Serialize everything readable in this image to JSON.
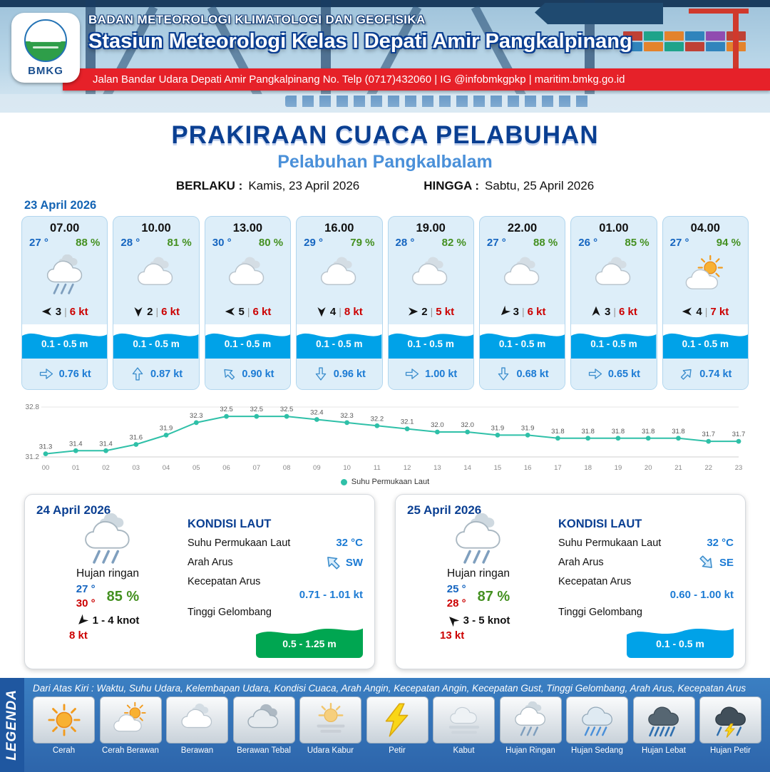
{
  "header": {
    "logo_text": "BMKG",
    "agency": "BADAN METEOROLOGI KLIMATOLOGI DAN GEOFISIKA",
    "station": "Stasiun Meteorologi Kelas I Depati Amir Pangkalpinang",
    "address": "Jalan Bandar Udara Depati Amir Pangkalpinang No. Telp (0717)432060 | IG @infobmkgpkp | maritim.bmkg.go.id"
  },
  "title": {
    "main": "PRAKIRAAN CUACA PELABUHAN",
    "subtitle": "Pelabuhan Pangkalbalam",
    "berlaku_label": "BERLAKU :",
    "berlaku_value": "Kamis, 23 April 2026",
    "hingga_label": "HINGGA :",
    "hingga_value": "Sabtu, 25 April 2026"
  },
  "forecast": {
    "date": "23 April 2026",
    "cards": [
      {
        "time": "07.00",
        "temp": "27 °",
        "humidity": "88 %",
        "icon": "rain-light",
        "wind_deg": 180,
        "wind_val": "3",
        "wind_speed": "6 kt",
        "wave": "0.1 - 0.5 m",
        "current_deg": 0,
        "current": "0.76 kt"
      },
      {
        "time": "10.00",
        "temp": "28 °",
        "humidity": "81 %",
        "icon": "cloud",
        "wind_deg": 90,
        "wind_val": "2",
        "wind_speed": "6 kt",
        "wave": "0.1 - 0.5 m",
        "current_deg": 270,
        "current": "0.87 kt"
      },
      {
        "time": "13.00",
        "temp": "30 °",
        "humidity": "80 %",
        "icon": "cloud",
        "wind_deg": 180,
        "wind_val": "5",
        "wind_speed": "6 kt",
        "wave": "0.1 - 0.5 m",
        "current_deg": 225,
        "current": "0.90 kt"
      },
      {
        "time": "16.00",
        "temp": "29 °",
        "humidity": "79 %",
        "icon": "cloud",
        "wind_deg": 90,
        "wind_val": "4",
        "wind_speed": "8 kt",
        "wave": "0.1 - 0.5 m",
        "current_deg": 90,
        "current": "0.96 kt"
      },
      {
        "time": "19.00",
        "temp": "28 °",
        "humidity": "82 %",
        "icon": "cloud",
        "wind_deg": 0,
        "wind_val": "2",
        "wind_speed": "5 kt",
        "wave": "0.1 - 0.5 m",
        "current_deg": 0,
        "current": "1.00 kt"
      },
      {
        "time": "22.00",
        "temp": "27 °",
        "humidity": "88 %",
        "icon": "cloud",
        "wind_deg": 135,
        "wind_val": "3",
        "wind_speed": "6 kt",
        "wave": "0.1 - 0.5 m",
        "current_deg": 90,
        "current": "0.68 kt"
      },
      {
        "time": "01.00",
        "temp": "26 °",
        "humidity": "85 %",
        "icon": "cloud",
        "wind_deg": 270,
        "wind_val": "3",
        "wind_speed": "6 kt",
        "wave": "0.1 - 0.5 m",
        "current_deg": 0,
        "current": "0.65 kt"
      },
      {
        "time": "04.00",
        "temp": "27 °",
        "humidity": "94 %",
        "icon": "sun-cloud",
        "wind_deg": 180,
        "wind_val": "4",
        "wind_speed": "7 kt",
        "wave": "0.1 - 0.5 m",
        "current_deg": 315,
        "current": "0.74 kt"
      }
    ]
  },
  "chart_data": {
    "type": "line",
    "series_label": "Suhu Permukaan Laut",
    "x": [
      "00",
      "01",
      "02",
      "03",
      "04",
      "05",
      "06",
      "07",
      "08",
      "09",
      "10",
      "11",
      "12",
      "13",
      "14",
      "15",
      "16",
      "17",
      "18",
      "19",
      "20",
      "21",
      "22",
      "23"
    ],
    "values": [
      31.3,
      31.4,
      31.4,
      31.6,
      31.9,
      32.3,
      32.5,
      32.5,
      32.5,
      32.4,
      32.3,
      32.2,
      32.1,
      32.0,
      32.0,
      31.9,
      31.9,
      31.8,
      31.8,
      31.8,
      31.8,
      31.8,
      31.7,
      31.7
    ],
    "ylim": [
      31.2,
      32.8
    ],
    "y_ticks": [
      "32.8",
      "31.2"
    ],
    "line_color": "#2fc0a8",
    "grid": false,
    "legend_position": "bottom"
  },
  "daily": [
    {
      "date": "24 April 2026",
      "icon": "rain-light",
      "condition": "Hujan ringan",
      "temp_min": "27 °",
      "temp_max": "30 °",
      "humidity": "85 %",
      "wind_deg": 135,
      "wind": "1 - 4 knot",
      "gust": "8 kt",
      "sea": {
        "title": "KONDISI LAUT",
        "sst_label": "Suhu Permukaan Laut",
        "sst": "32 °C",
        "dir_label": "Arah Arus",
        "dir": "SW",
        "current_deg": 225,
        "speed_label": "Kecepatan Arus",
        "speed": "0.71 - 1.01 kt",
        "wave_label": "Tinggi Gelombang",
        "wave": "0.5 - 1.25 m",
        "wave_color": "#00a651"
      }
    },
    {
      "date": "25 April 2026",
      "icon": "rain-light",
      "condition": "Hujan ringan",
      "temp_min": "25 °",
      "temp_max": "28 °",
      "humidity": "87 %",
      "wind_deg": 225,
      "wind": "3 - 5 knot",
      "gust": "13 kt",
      "sea": {
        "title": "KONDISI LAUT",
        "sst_label": "Suhu Permukaan Laut",
        "sst": "32 °C",
        "dir_label": "Arah Arus",
        "dir": "SE",
        "current_deg": 45,
        "speed_label": "Kecepatan Arus",
        "speed": "0.60 - 1.00 kt",
        "wave_label": "Tinggi Gelombang",
        "wave": "0.1 - 0.5 m",
        "wave_color": "#00a2e8"
      }
    }
  ],
  "legend": {
    "title": "LEGENDA",
    "description": "Dari Atas Kiri : Waktu, Suhu Udara, Kelembapan Udara, Kondisi Cuaca, Arah Angin, Kecepatan Angin, Kecepatan Gust, Tinggi Gelombang, Arah Arus, Kecepatan Arus",
    "items": [
      {
        "label": "Cerah",
        "icon": "sun"
      },
      {
        "label": "Cerah Berawan",
        "icon": "sun-cloud"
      },
      {
        "label": "Berawan",
        "icon": "cloud"
      },
      {
        "label": "Berawan Tebal",
        "icon": "cloud-thick"
      },
      {
        "label": "Udara Kabur",
        "icon": "haze"
      },
      {
        "label": "Petir",
        "icon": "bolt"
      },
      {
        "label": "Kabut",
        "icon": "fog"
      },
      {
        "label": "Hujan Ringan",
        "icon": "rain-light"
      },
      {
        "label": "Hujan Sedang",
        "icon": "rain-med"
      },
      {
        "label": "Hujan Lebat",
        "icon": "rain-heavy"
      },
      {
        "label": "Hujan Petir",
        "icon": "rain-thunder"
      }
    ]
  },
  "colors": {
    "accent_navy": "#0a3f92",
    "accent_blue": "#1c7bd4",
    "humidity_green": "#449021",
    "alert_red": "#cc0000",
    "banner_red": "#e62129",
    "wave_blue": "#00a2e8",
    "wave_green": "#00a651",
    "sst_line": "#2fc0a8"
  }
}
